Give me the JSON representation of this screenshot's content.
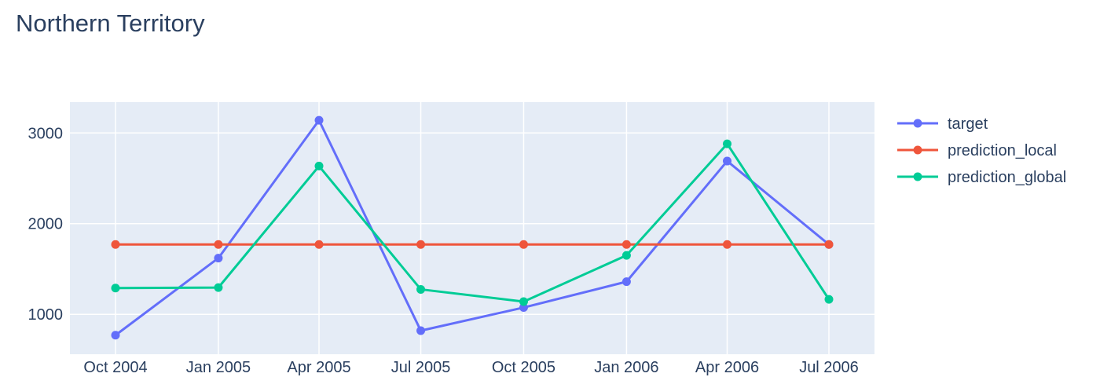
{
  "chart_data": {
    "type": "line",
    "title": "Northern Territory",
    "xlabel": "",
    "ylabel": "",
    "x": [
      "2004-10-01",
      "2005-01-01",
      "2005-04-01",
      "2005-07-01",
      "2005-10-01",
      "2006-01-01",
      "2006-04-01",
      "2006-07-01"
    ],
    "x_tick_labels": [
      "Oct 2004",
      "Jan 2005",
      "Apr 2005",
      "Jul 2005",
      "Oct 2005",
      "Jan 2006",
      "Apr 2006",
      "Jul 2006"
    ],
    "y_ticks": [
      1000,
      2000,
      3000
    ],
    "ylim": [
      560,
      3340
    ],
    "grid": true,
    "legend_position": "right",
    "plot_background": "#e5ecf6",
    "series": [
      {
        "name": "target",
        "color": "#636efa",
        "values": [
          770,
          1620,
          3140,
          820,
          1075,
          1360,
          2690,
          1770
        ]
      },
      {
        "name": "prediction_local",
        "color": "#ef553b",
        "values": [
          1770,
          1770,
          1770,
          1770,
          1770,
          1770,
          1770,
          1770
        ]
      },
      {
        "name": "prediction_global",
        "color": "#00cc96",
        "values": [
          1290,
          1295,
          2635,
          1275,
          1140,
          1650,
          2880,
          1165
        ]
      }
    ]
  }
}
